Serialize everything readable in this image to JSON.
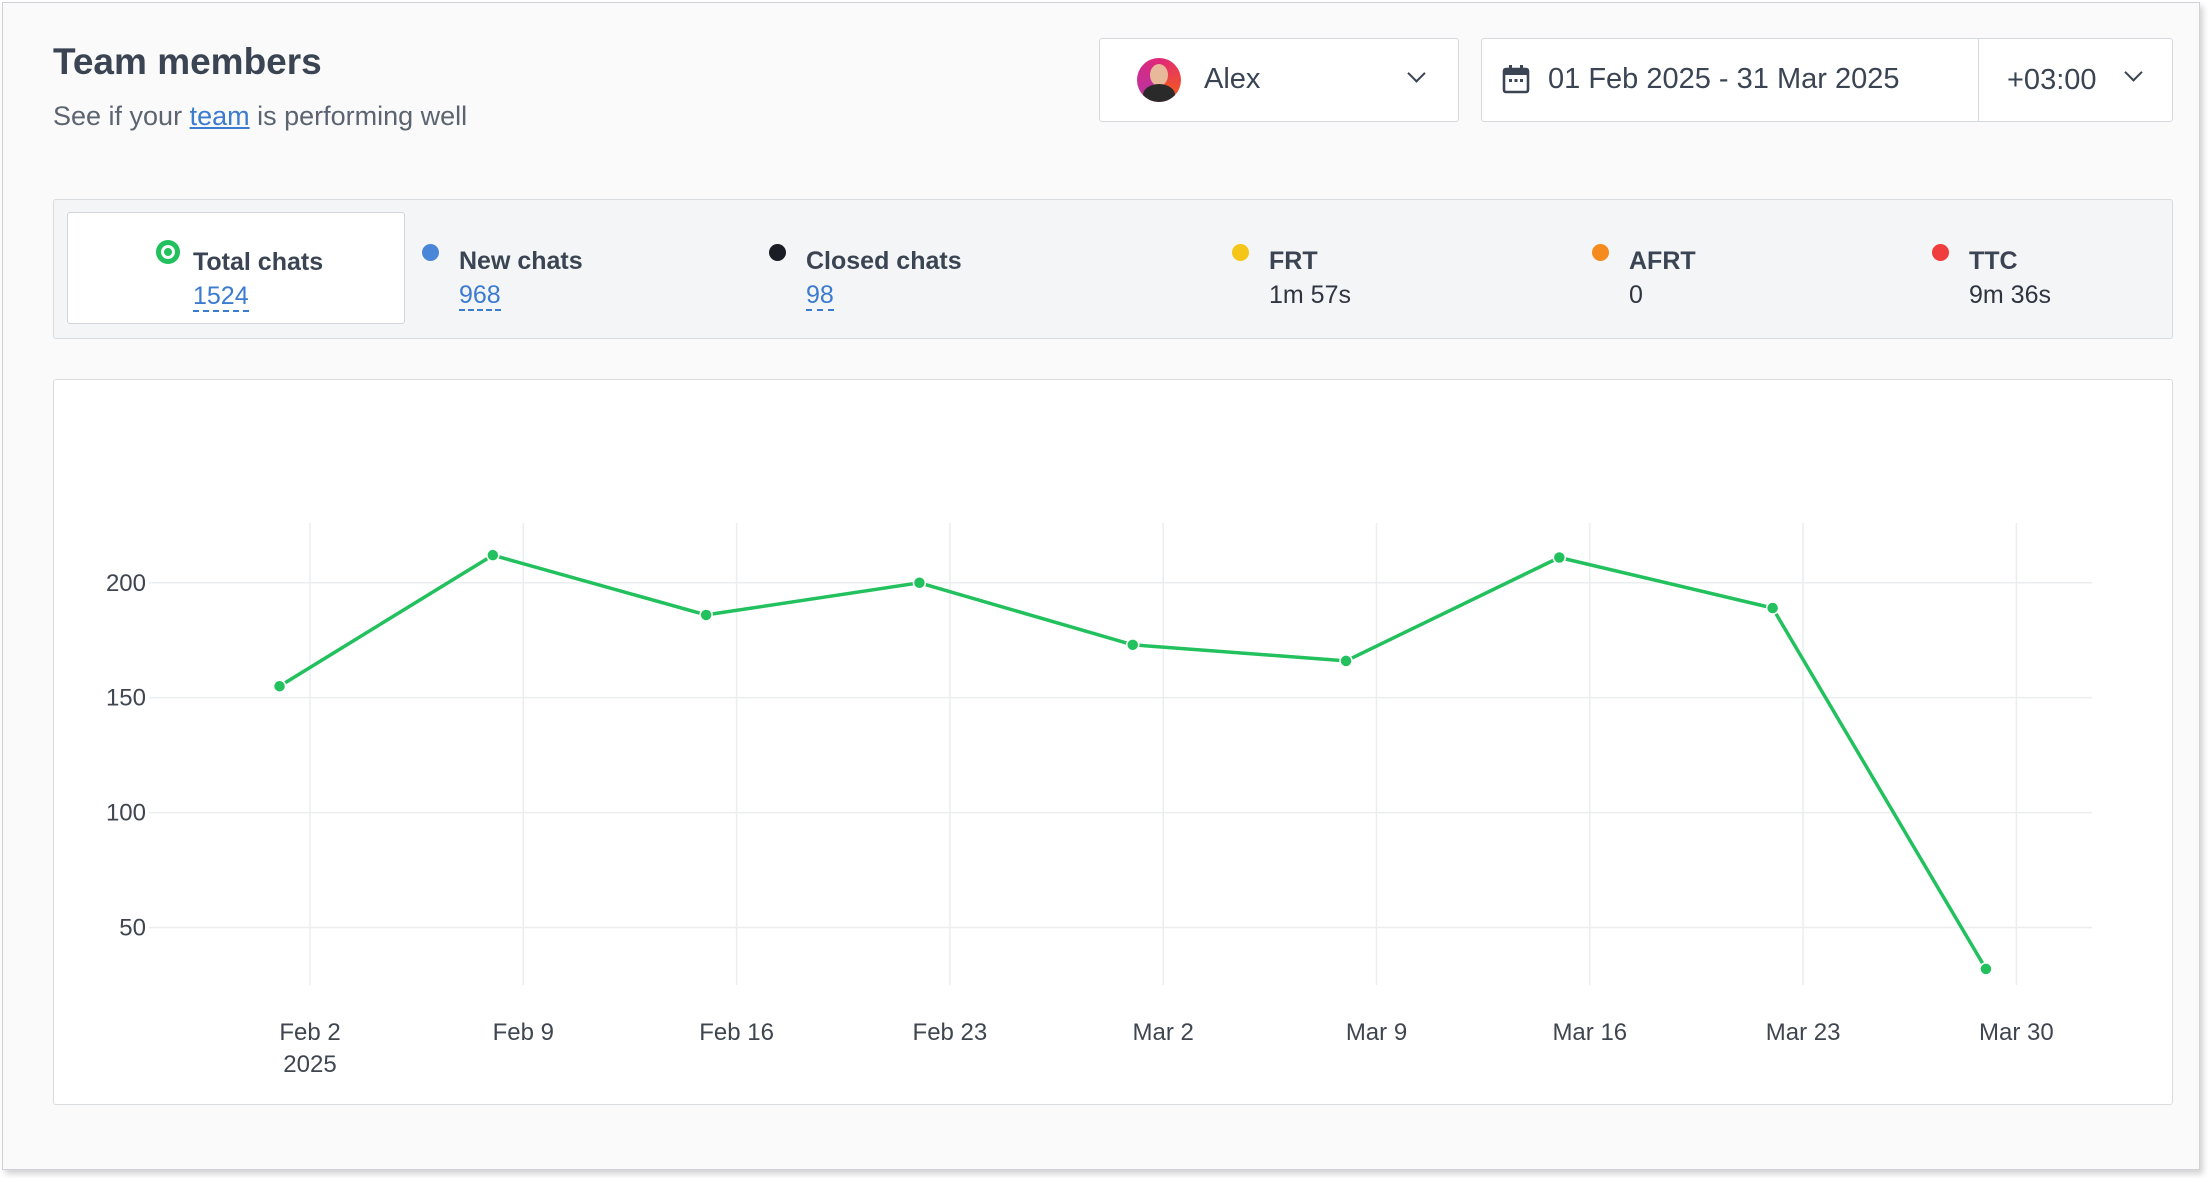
{
  "header": {
    "title": "Team members",
    "subtitle_prefix": "See if your ",
    "subtitle_link": "team",
    "subtitle_suffix": " is performing well"
  },
  "filters": {
    "agent_name": "Alex",
    "date_range": "01 Feb 2025 - 31 Mar 2025",
    "timezone": "+03:00"
  },
  "stats": [
    {
      "label": "Total chats",
      "value": "1524",
      "color": "#22c15e",
      "active": true,
      "link": true
    },
    {
      "label": "New chats",
      "value": "968",
      "color": "#4a86d8",
      "active": false,
      "link": true
    },
    {
      "label": "Closed chats",
      "value": "98",
      "color": "#1b1d24",
      "active": false,
      "link": true
    },
    {
      "label": "FRT",
      "value": "1m 57s",
      "color": "#f5c518",
      "active": false,
      "link": false
    },
    {
      "label": "AFRT",
      "value": "0",
      "color": "#f58b1f",
      "active": false,
      "link": false
    },
    {
      "label": "TTC",
      "value": "9m 36s",
      "color": "#f03e3e",
      "active": false,
      "link": false
    }
  ],
  "chart_data": {
    "type": "line",
    "x_ticks": [
      "Feb 2",
      "Feb 9",
      "Feb 16",
      "Feb 23",
      "Mar 2",
      "Mar 9",
      "Mar 16",
      "Mar 23",
      "Mar 30"
    ],
    "x_tick_year": "2025",
    "y_ticks": [
      50,
      100,
      150,
      200
    ],
    "ylim": [
      25,
      226
    ],
    "grid": true,
    "series": [
      {
        "color": "#22c15e",
        "points": [
          {
            "x": "2025-02-01",
            "y": 155
          },
          {
            "x": "2025-02-08",
            "y": 212
          },
          {
            "x": "2025-02-15",
            "y": 186
          },
          {
            "x": "2025-02-22",
            "y": 200
          },
          {
            "x": "2025-03-01",
            "y": 173
          },
          {
            "x": "2025-03-08",
            "y": 166
          },
          {
            "x": "2025-03-15",
            "y": 211
          },
          {
            "x": "2025-03-22",
            "y": 189
          },
          {
            "x": "2025-03-29",
            "y": 32
          }
        ]
      }
    ]
  }
}
